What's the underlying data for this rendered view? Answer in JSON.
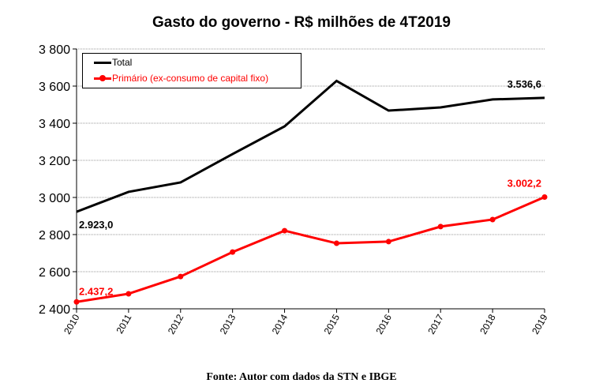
{
  "chart_data": {
    "type": "line",
    "title": "Gasto do governo - R$ milhões de 4T2019",
    "x": [
      "2010",
      "2011",
      "2012",
      "2013",
      "2014",
      "2015",
      "2016",
      "2017",
      "2018",
      "2019"
    ],
    "ylim": [
      2400,
      3800
    ],
    "yticks": [
      2400,
      2600,
      2800,
      3000,
      3200,
      3400,
      3600,
      3800
    ],
    "ytick_labels": [
      "2 400",
      "2 600",
      "2 800",
      "3 000",
      "3 200",
      "3 400",
      "3 600",
      "3 800"
    ],
    "grid": true,
    "legend_position": "top-left",
    "series": [
      {
        "name": "Total",
        "color": "#000000",
        "markers": false,
        "values": [
          2923.0,
          3030,
          3081,
          3234,
          3383,
          3628,
          3468,
          3485,
          3528,
          3536.6
        ],
        "labels": [
          {
            "index": 0,
            "text": "2.923,0"
          },
          {
            "index": 9,
            "text": "3.536,6"
          }
        ]
      },
      {
        "name": "Primário (ex-consumo de capital fixo)",
        "color": "#ff0000",
        "markers": true,
        "values": [
          2437.2,
          2481,
          2574,
          2706,
          2821,
          2753,
          2762,
          2843,
          2881,
          3002.2
        ],
        "labels": [
          {
            "index": 0,
            "text": "2.437,2"
          },
          {
            "index": 9,
            "text": "3.002,2"
          }
        ]
      }
    ]
  },
  "source": "Fonte: Autor com dados da STN e IBGE"
}
